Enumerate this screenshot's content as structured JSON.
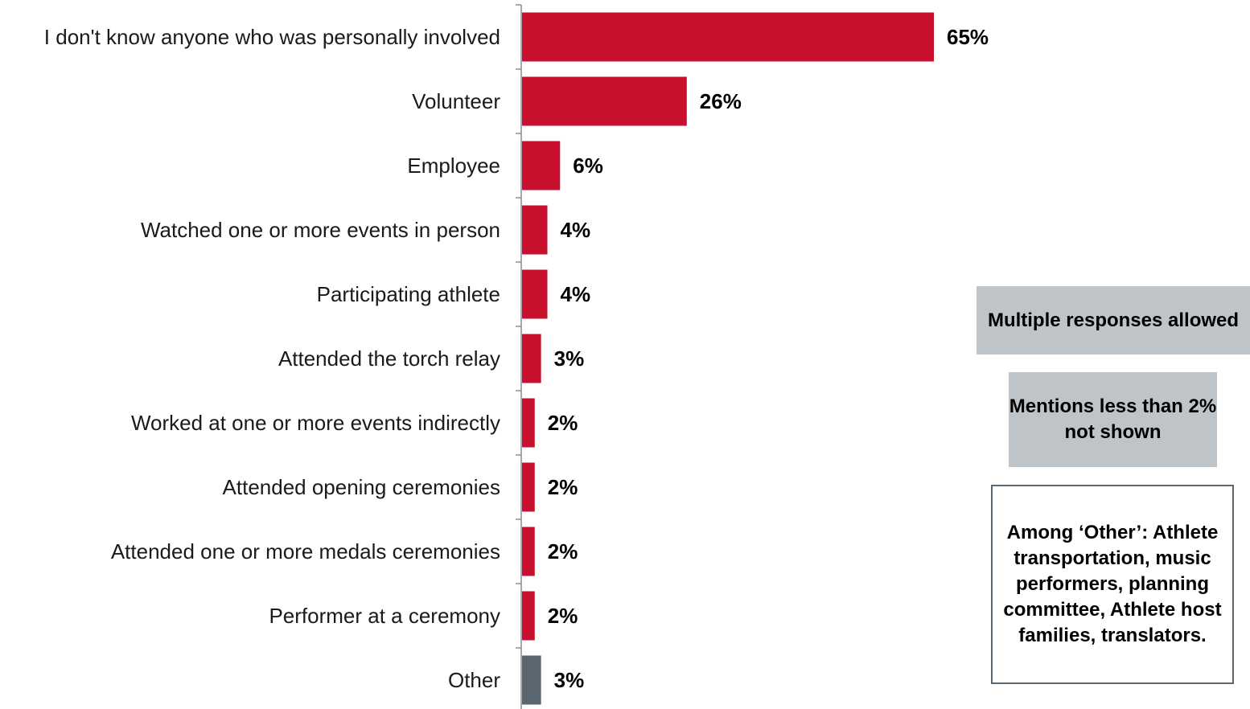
{
  "chart_data": {
    "type": "bar",
    "orientation": "horizontal",
    "categories": [
      "I don't know anyone who was personally involved",
      "Volunteer",
      "Employee",
      "Watched one or more events in person",
      "Participating athlete",
      "Attended the torch relay",
      "Worked at one or more events indirectly",
      "Attended opening ceremonies",
      "Attended one or more medals ceremonies",
      "Performer at a ceremony",
      "Other"
    ],
    "values": [
      65,
      26,
      6,
      4,
      4,
      3,
      2,
      2,
      2,
      2,
      3
    ],
    "value_labels": [
      "65%",
      "26%",
      "6%",
      "4%",
      "4%",
      "3%",
      "2%",
      "2%",
      "2%",
      "2%",
      "3%"
    ],
    "bar_colors": [
      "#c8102e",
      "#c8102e",
      "#c8102e",
      "#c8102e",
      "#c8102e",
      "#c8102e",
      "#c8102e",
      "#c8102e",
      "#c8102e",
      "#c8102e",
      "#5a6670"
    ],
    "xlim": [
      0,
      100
    ],
    "grid": false,
    "legend": "none"
  },
  "notes": {
    "multiple": "Multiple responses allowed",
    "mentions": "Mentions less than 2% not shown",
    "other": "Among ‘Other’: Athlete transportation, music performers, planning committee, Athlete host families, translators."
  },
  "colors": {
    "bar_primary": "#c8102e",
    "bar_other": "#5a6670",
    "axis": "#8c8c8c",
    "note_fill": "#bfc4c9",
    "note_border": "#5a6670"
  }
}
